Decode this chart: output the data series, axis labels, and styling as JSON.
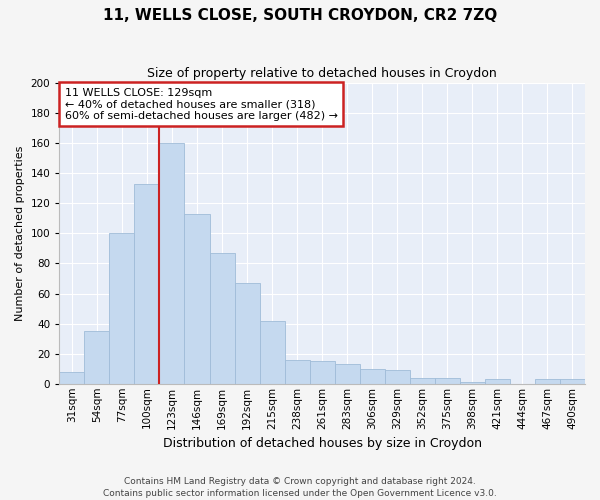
{
  "title": "11, WELLS CLOSE, SOUTH CROYDON, CR2 7ZQ",
  "subtitle": "Size of property relative to detached houses in Croydon",
  "xlabel": "Distribution of detached houses by size in Croydon",
  "ylabel": "Number of detached properties",
  "categories": [
    "31sqm",
    "54sqm",
    "77sqm",
    "100sqm",
    "123sqm",
    "146sqm",
    "169sqm",
    "192sqm",
    "215sqm",
    "238sqm",
    "261sqm",
    "283sqm",
    "306sqm",
    "329sqm",
    "352sqm",
    "375sqm",
    "398sqm",
    "421sqm",
    "444sqm",
    "467sqm",
    "490sqm"
  ],
  "values": [
    8,
    35,
    100,
    133,
    160,
    113,
    87,
    67,
    42,
    16,
    15,
    13,
    10,
    9,
    4,
    4,
    1,
    3,
    0,
    3,
    3
  ],
  "bar_color": "#c5d9ef",
  "bar_edge_color": "#a0bcd8",
  "vline_index": 4,
  "vline_color": "#cc2222",
  "annotation_text": "11 WELLS CLOSE: 129sqm\n← 40% of detached houses are smaller (318)\n60% of semi-detached houses are larger (482) →",
  "annotation_box_facecolor": "#ffffff",
  "annotation_box_edgecolor": "#cc2222",
  "bg_color": "#e8eef8",
  "grid_color": "#ffffff",
  "fig_bg": "#f5f5f5",
  "footer": "Contains HM Land Registry data © Crown copyright and database right 2024.\nContains public sector information licensed under the Open Government Licence v3.0.",
  "ylim": [
    0,
    200
  ],
  "yticks": [
    0,
    20,
    40,
    60,
    80,
    100,
    120,
    140,
    160,
    180,
    200
  ],
  "title_fontsize": 11,
  "subtitle_fontsize": 9,
  "ylabel_fontsize": 8,
  "xlabel_fontsize": 9,
  "tick_fontsize": 7.5,
  "footer_fontsize": 6.5,
  "annot_fontsize": 8
}
